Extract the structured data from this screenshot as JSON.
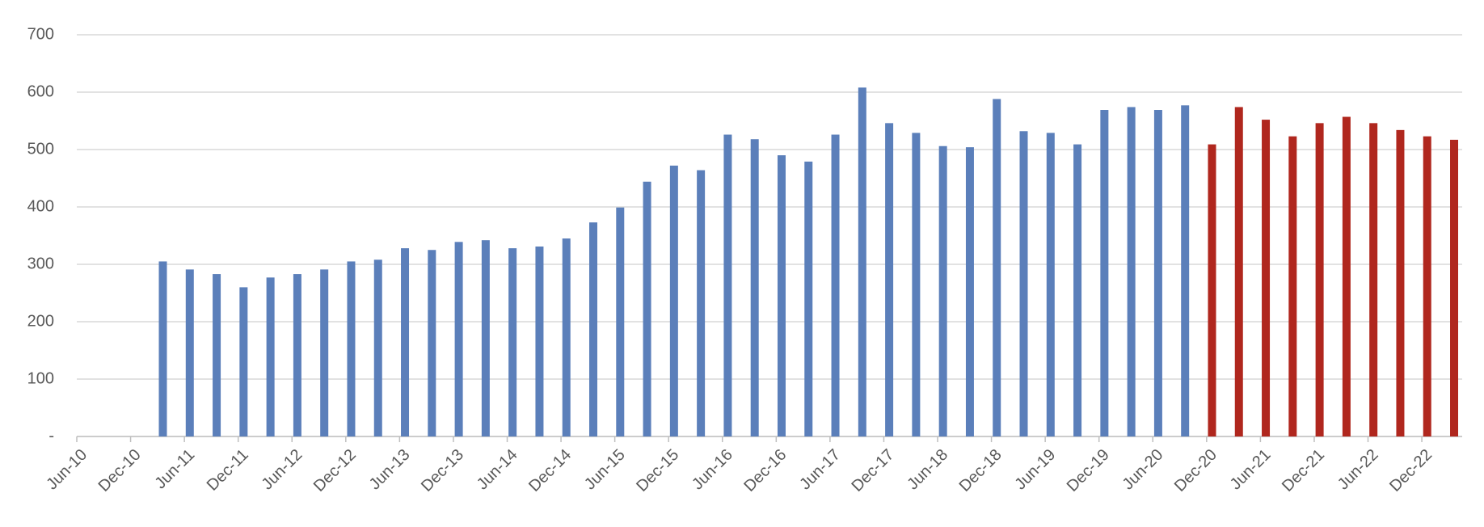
{
  "chart_data": {
    "type": "bar",
    "categories": [
      "Jun-10",
      null,
      "Dec-10",
      null,
      "Jun-11",
      null,
      "Dec-11",
      null,
      "Jun-12",
      null,
      "Dec-12",
      null,
      "Jun-13",
      null,
      "Dec-13",
      null,
      "Jun-14",
      null,
      "Dec-14",
      null,
      "Jun-15",
      null,
      "Dec-15",
      null,
      "Jun-16",
      null,
      "Dec-16",
      null,
      "Jun-17",
      null,
      "Dec-17",
      null,
      "Jun-18",
      null,
      "Dec-18",
      null,
      "Jun-19",
      null,
      "Dec-19",
      null,
      "Jun-20",
      null,
      "Dec-20",
      null,
      "Jun-21",
      null,
      "Dec-21",
      null,
      "Jun-22",
      null,
      "Dec-22",
      null
    ],
    "series": [
      {
        "color": "#5b7fba",
        "values": [
          null,
          null,
          null,
          305,
          291,
          283,
          260,
          277,
          283,
          291,
          305,
          308,
          328,
          325,
          339,
          342,
          328,
          331,
          345,
          373,
          399,
          444,
          472,
          464,
          526,
          518,
          490,
          479,
          526,
          608,
          546,
          529,
          506,
          504,
          588,
          532,
          529,
          509,
          569,
          574,
          569,
          577,
          null,
          null,
          null,
          null,
          null,
          null,
          null,
          null,
          null,
          null
        ]
      },
      {
        "color": "#b0271e",
        "values": [
          null,
          null,
          null,
          null,
          null,
          null,
          null,
          null,
          null,
          null,
          null,
          null,
          null,
          null,
          null,
          null,
          null,
          null,
          null,
          null,
          null,
          null,
          null,
          null,
          null,
          null,
          null,
          null,
          null,
          null,
          null,
          null,
          null,
          null,
          null,
          null,
          null,
          null,
          null,
          null,
          null,
          null,
          509,
          574,
          552,
          523,
          546,
          557,
          546,
          534,
          523,
          517
        ]
      }
    ],
    "ylim": [
      0,
      700
    ],
    "yticks": [
      {
        "value": 0,
        "label": "-"
      },
      100,
      200,
      300,
      400,
      500,
      600,
      700
    ],
    "grid": true
  }
}
